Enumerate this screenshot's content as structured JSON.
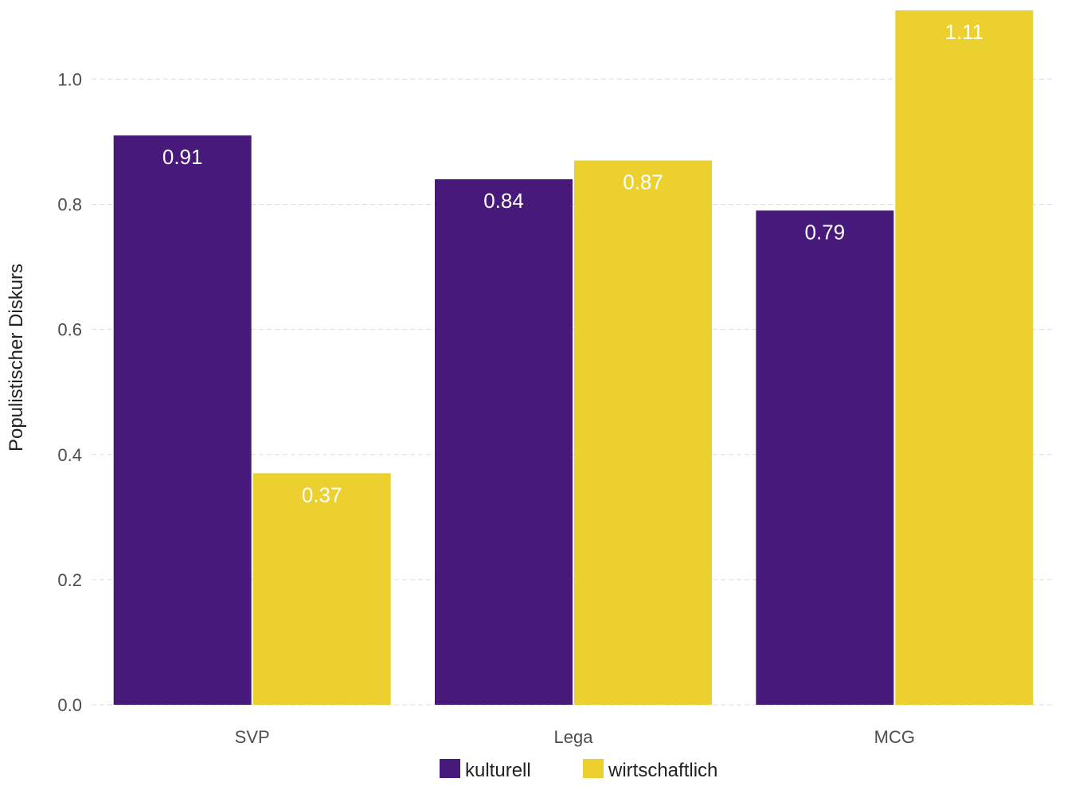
{
  "chart_data": {
    "type": "bar",
    "categories": [
      "SVP",
      "Lega",
      "MCG"
    ],
    "series": [
      {
        "name": "kulturell",
        "values": [
          0.91,
          0.84,
          0.79
        ],
        "labels": [
          "0.91",
          "0.84",
          "0.79"
        ],
        "color": "#46197a"
      },
      {
        "name": "wirtschaftlich",
        "values": [
          0.37,
          0.87,
          1.11
        ],
        "labels": [
          "0.37",
          "0.87",
          "1.11"
        ],
        "color": "#ebd02f"
      }
    ],
    "ylabel": "Populistischer Diskurs",
    "xlabel": "",
    "ylim": [
      0,
      1.11
    ],
    "yticks": [
      0.0,
      0.2,
      0.4,
      0.6,
      0.8,
      1.0
    ],
    "ytick_labels": [
      "0.0",
      "0.2",
      "0.4",
      "0.6",
      "0.8",
      "1.0"
    ],
    "grid": true,
    "legend_position": "bottom"
  }
}
